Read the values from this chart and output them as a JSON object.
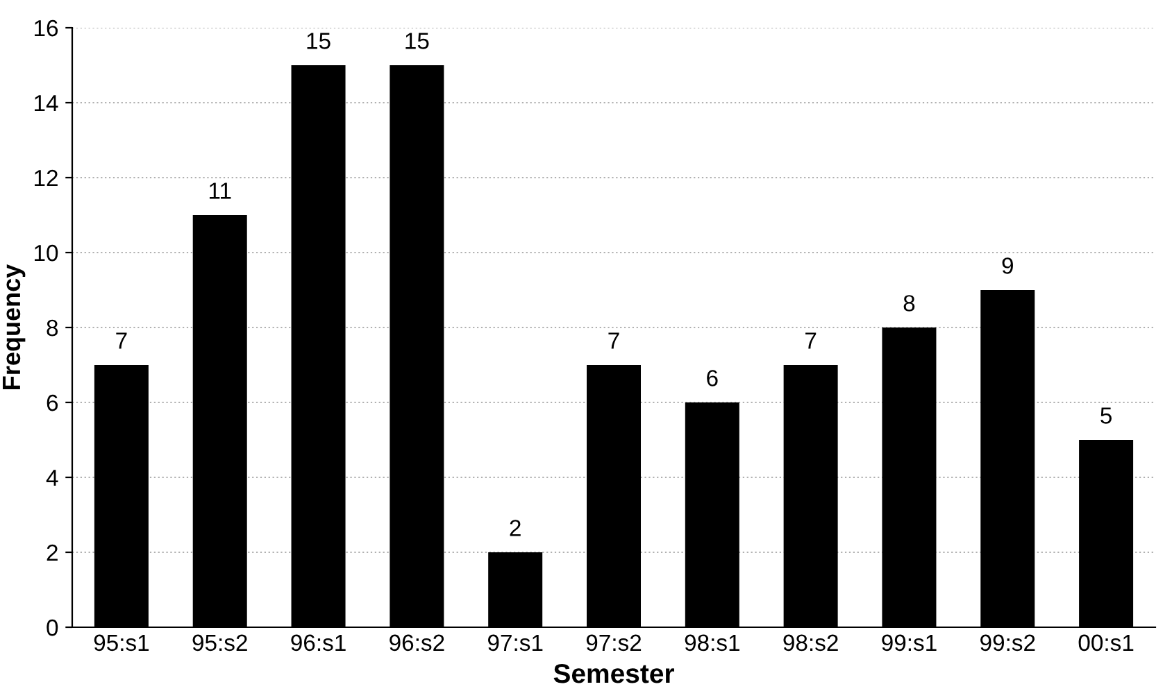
{
  "chart_data": {
    "type": "bar",
    "xlabel": "Semester",
    "ylabel": "Frequency",
    "categories": [
      "95:s1",
      "95:s2",
      "96:s1",
      "96:s2",
      "97:s1",
      "97:s2",
      "98:s1",
      "98:s2",
      "99:s1",
      "99:s2",
      "00:s1"
    ],
    "values": [
      7,
      11,
      15,
      15,
      2,
      7,
      6,
      7,
      8,
      9,
      5
    ],
    "color": "#000000",
    "data_labels": true,
    "grid": "y",
    "ylim": [
      0,
      16
    ],
    "yticks": [
      0,
      2,
      4,
      6,
      8,
      10,
      12,
      14,
      16
    ]
  }
}
